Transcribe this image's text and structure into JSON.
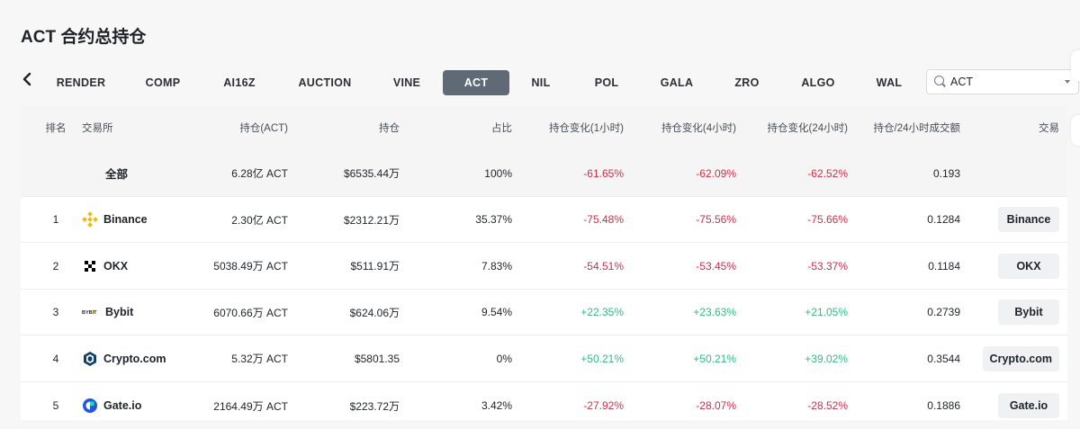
{
  "page": {
    "title": "ACT 合约总持仓"
  },
  "tabs": [
    {
      "label": "RENDER"
    },
    {
      "label": "COMP"
    },
    {
      "label": "AI16Z"
    },
    {
      "label": "AUCTION"
    },
    {
      "label": "VINE"
    },
    {
      "label": "ACT",
      "active": true
    },
    {
      "label": "NIL"
    },
    {
      "label": "POL"
    },
    {
      "label": "GALA"
    },
    {
      "label": "ZRO"
    },
    {
      "label": "ALGO"
    },
    {
      "label": "WAL"
    }
  ],
  "search": {
    "value": "ACT"
  },
  "table": {
    "headers": {
      "rank": "排名",
      "exchange": "交易所",
      "oi_coin": "持仓(ACT)",
      "oi_usd": "持仓",
      "share": "占比",
      "chg_1h": "持仓变化(1小时)",
      "chg_4h": "持仓变化(4小时)",
      "chg_24h": "持仓变化(24小时)",
      "ratio": "持仓/24小时成交额",
      "trade": "交易"
    },
    "total": {
      "name": "全部",
      "oi_coin": "6.28亿 ACT",
      "oi_usd": "$6535.44万",
      "share": "100%",
      "chg_1h": "-61.65%",
      "chg_4h": "-62.09%",
      "chg_24h": "-62.52%",
      "ratio": "0.193"
    },
    "rows": [
      {
        "rank": "1",
        "name": "Binance",
        "logo": "binance-logo",
        "oi_coin": "2.30亿 ACT",
        "oi_usd": "$2312.21万",
        "share": "35.37%",
        "chg_1h": "-75.48%",
        "chg_4h": "-75.56%",
        "chg_24h": "-75.66%",
        "ratio": "0.1284",
        "trade": "Binance"
      },
      {
        "rank": "2",
        "name": "OKX",
        "logo": "okx-logo",
        "oi_coin": "5038.49万 ACT",
        "oi_usd": "$511.91万",
        "share": "7.83%",
        "chg_1h": "-54.51%",
        "chg_4h": "-53.45%",
        "chg_24h": "-53.37%",
        "ratio": "0.1184",
        "trade": "OKX"
      },
      {
        "rank": "3",
        "name": "Bybit",
        "logo": "bybit-logo",
        "logo_text": "BYBIT",
        "oi_coin": "6070.66万 ACT",
        "oi_usd": "$624.06万",
        "share": "9.54%",
        "chg_1h": "+22.35%",
        "chg_4h": "+23.63%",
        "chg_24h": "+21.05%",
        "ratio": "0.2739",
        "trade": "Bybit"
      },
      {
        "rank": "4",
        "name": "Crypto.com",
        "logo": "crypto-com-logo",
        "oi_coin": "5.32万 ACT",
        "oi_usd": "$5801.35",
        "share": "0%",
        "chg_1h": "+50.21%",
        "chg_4h": "+50.21%",
        "chg_24h": "+39.02%",
        "ratio": "0.3544",
        "trade": "Crypto.com"
      },
      {
        "rank": "5",
        "name": "Gate.io",
        "logo": "gate-io-logo",
        "oi_coin": "2164.49万 ACT",
        "oi_usd": "$223.72万",
        "share": "3.42%",
        "chg_1h": "-27.92%",
        "chg_4h": "-28.07%",
        "chg_24h": "-28.52%",
        "ratio": "0.1886",
        "trade": "Gate.io"
      }
    ]
  },
  "colors": {
    "negative": "#cf304a",
    "positive": "#2ebd85",
    "active_tab": "#5f6a76",
    "binance": "#f0b90b",
    "cryptocom": "#103f68",
    "gate": "#2354e6"
  }
}
